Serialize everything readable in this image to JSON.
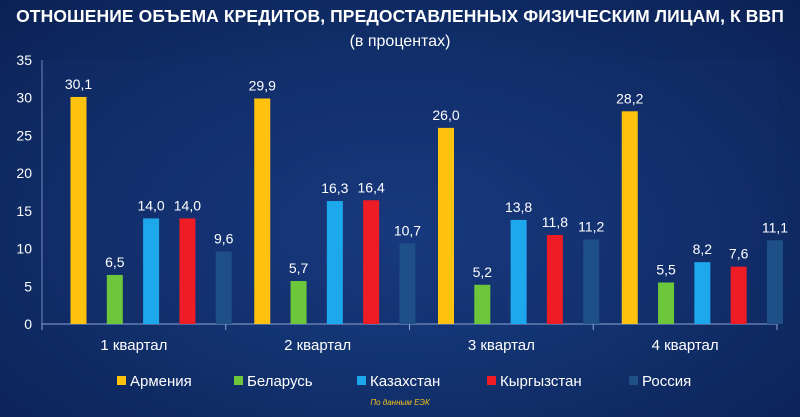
{
  "chart_data": {
    "type": "bar",
    "title": "ОТНОШЕНИЕ ОБЪЕМА КРЕДИТОВ, ПРЕДОСТАВЛЕННЫХ ФИЗИЧЕСКИМ ЛИЦАМ, К ВВП",
    "subtitle": "(в процентах)",
    "categories": [
      "1 квартал",
      "2 квартал",
      "3 квартал",
      "4 квартал"
    ],
    "series": [
      {
        "name": "Армения",
        "color": "#ffc20e",
        "values": [
          30.1,
          29.9,
          26.0,
          28.2
        ],
        "labels": [
          "30,1",
          "29,9",
          "26,0",
          "28,2"
        ]
      },
      {
        "name": "Беларусь",
        "color": "#6cc83a",
        "values": [
          6.5,
          5.7,
          5.2,
          5.5
        ],
        "labels": [
          "6,5",
          "5,7",
          "5,2",
          "5,5"
        ]
      },
      {
        "name": "Казахстан",
        "color": "#1ea8ec",
        "values": [
          14.0,
          16.3,
          13.8,
          8.2
        ],
        "labels": [
          "14,0",
          "16,3",
          "13,8",
          "8,2"
        ]
      },
      {
        "name": "Кыргызстан",
        "color": "#ee1c25",
        "values": [
          14.0,
          16.4,
          11.8,
          7.6
        ],
        "labels": [
          "14,0",
          "16,4",
          "11,8",
          "7,6"
        ]
      },
      {
        "name": "Россия",
        "color": "#1e4f86",
        "values": [
          9.6,
          10.7,
          11.2,
          11.1
        ],
        "labels": [
          "9,6",
          "10,7",
          "11,2",
          "11,1"
        ]
      }
    ],
    "yticks": [
      "0",
      "5",
      "10",
      "15",
      "20",
      "25",
      "30",
      "35"
    ],
    "ylim": [
      0,
      35
    ],
    "xlabel": "",
    "ylabel": "",
    "grid": false,
    "legend": "bottom"
  },
  "source_note": "По данным ЕЭК"
}
